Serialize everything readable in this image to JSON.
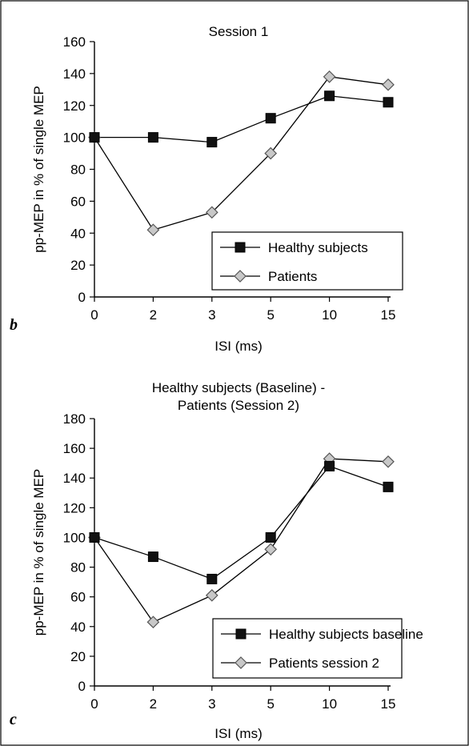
{
  "chart_data": [
    {
      "type": "line",
      "panel": "b",
      "title": "Session 1",
      "title_lines": [
        "Session 1"
      ],
      "xlabel": "ISI (ms)",
      "ylabel": "pp-MEP in % of single MEP",
      "categories": [
        "0",
        "2",
        "3",
        "5",
        "10",
        "15"
      ],
      "ylim": [
        0,
        160
      ],
      "yticks": [
        0,
        20,
        40,
        60,
        80,
        100,
        120,
        140,
        160
      ],
      "legend_position": "bottom-right",
      "series": [
        {
          "name": "Healthy subjects",
          "marker": "square",
          "values": [
            100,
            100,
            97,
            112,
            126,
            122
          ]
        },
        {
          "name": "Patients",
          "marker": "diamond",
          "values": [
            100,
            42,
            53,
            90,
            138,
            133
          ]
        }
      ]
    },
    {
      "type": "line",
      "panel": "c",
      "title": "Healthy subjects (Baseline) - Patients (Session 2)",
      "title_lines": [
        "Healthy subjects (Baseline) -",
        "Patients (Session 2)"
      ],
      "xlabel": "ISI (ms)",
      "ylabel": "pp-MEP in % of single MEP",
      "categories": [
        "0",
        "2",
        "3",
        "5",
        "10",
        "15"
      ],
      "ylim": [
        0,
        180
      ],
      "yticks": [
        0,
        20,
        40,
        60,
        80,
        100,
        120,
        140,
        160,
        180
      ],
      "legend_position": "bottom-right",
      "series": [
        {
          "name": "Healthy subjects baseline",
          "marker": "square",
          "values": [
            100,
            87,
            72,
            100,
            148,
            134
          ]
        },
        {
          "name": "Patients session 2",
          "marker": "diamond",
          "values": [
            100,
            43,
            61,
            92,
            153,
            151
          ]
        }
      ]
    }
  ],
  "colors": {
    "healthy_marker": "#111111",
    "patient_marker": "#c8c8c8",
    "line": "#000000"
  }
}
